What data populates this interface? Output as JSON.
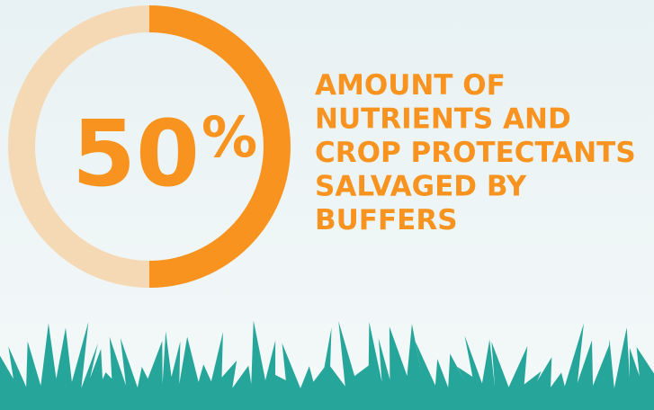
{
  "chart_data": {
    "type": "donut",
    "values": [
      50
    ],
    "value_labels": [
      "50%"
    ],
    "color": "#f7931e",
    "track_color": "#f5d9b5",
    "title_lines": [
      "AMOUNT OF",
      "NUTRIENTS AND",
      "CROP PROTECTANTS",
      "SALVAGED BY",
      "BUFFERS"
    ]
  }
}
